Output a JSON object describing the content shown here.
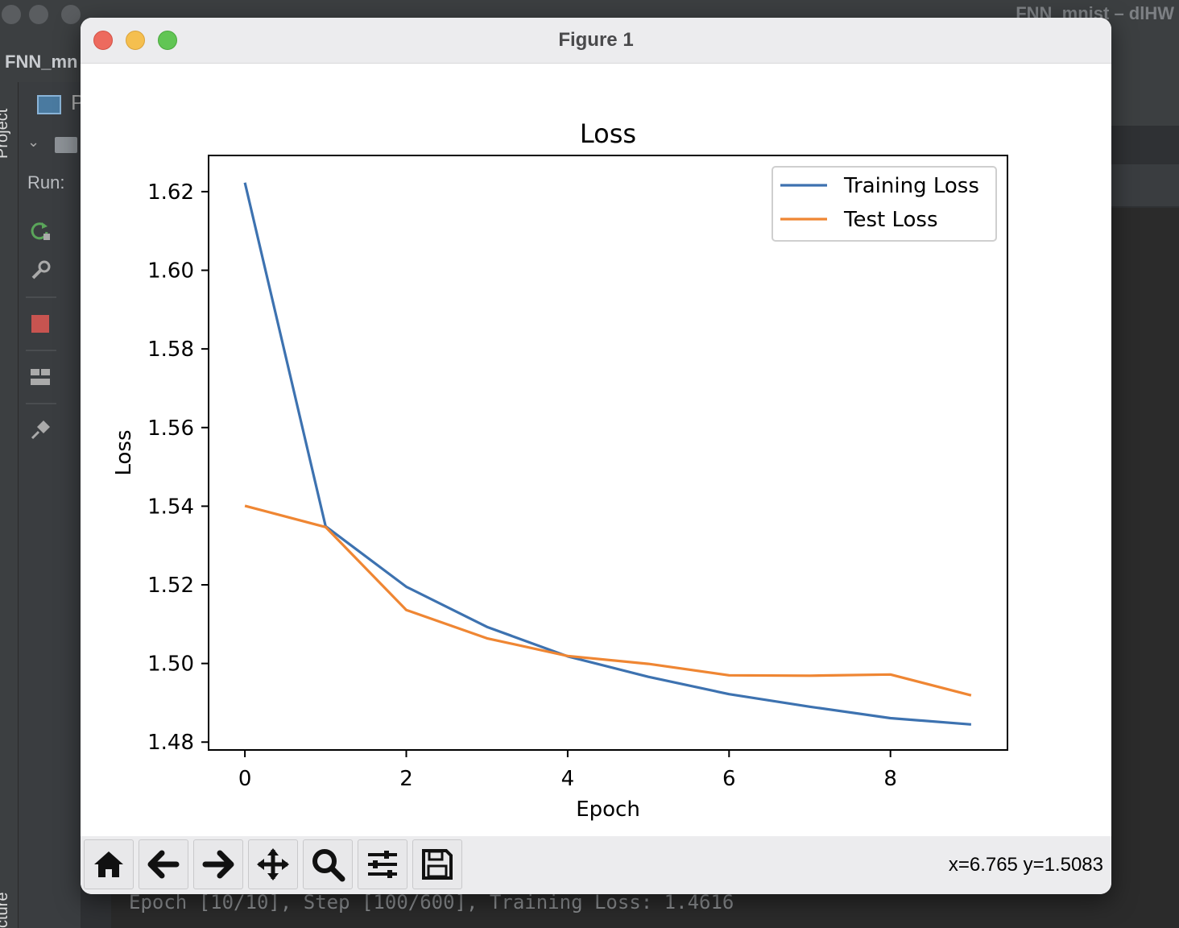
{
  "ide": {
    "window_title": "FNN_mnist – dlHW",
    "project_name": "FNN_mn",
    "project_tab_vertical": "Project",
    "structure_tab_vertical": "cture",
    "run_label": "Run:",
    "project_panel_partial": "P",
    "console_line": "Epoch [10/10], Step [100/600], Training Loss: 1.4616"
  },
  "figure_window": {
    "title": "Figure 1",
    "coords": "x=6.765 y=1.5083",
    "toolbar_buttons": [
      "home-icon",
      "back-icon",
      "forward-icon",
      "pan-icon",
      "zoom-icon",
      "configure-subplots-icon",
      "save-icon"
    ]
  },
  "chart_data": {
    "type": "line",
    "title": "Loss",
    "xlabel": "Epoch",
    "ylabel": "Loss",
    "x": [
      0,
      1,
      2,
      3,
      4,
      5,
      6,
      7,
      8,
      9
    ],
    "xlim": [
      -0.45,
      9.45
    ],
    "ylim": [
      1.478,
      1.6292
    ],
    "xticks": [
      0,
      2,
      4,
      6,
      8
    ],
    "yticks": [
      1.48,
      1.5,
      1.52,
      1.54,
      1.56,
      1.58,
      1.6,
      1.62
    ],
    "ytick_labels": [
      "1.48",
      "1.50",
      "1.52",
      "1.54",
      "1.56",
      "1.58",
      "1.60",
      "1.62"
    ],
    "legend": "top-right",
    "grid": false,
    "series": [
      {
        "name": "Training Loss",
        "color": "#3d72b0",
        "values": [
          1.6223,
          1.5349,
          1.5195,
          1.5093,
          1.5018,
          1.4966,
          1.4922,
          1.489,
          1.4861,
          1.4845
        ]
      },
      {
        "name": "Test Loss",
        "color": "#ef8633",
        "values": [
          1.5401,
          1.5347,
          1.5136,
          1.5064,
          1.5019,
          1.4999,
          1.497,
          1.4969,
          1.4972,
          1.4919
        ]
      }
    ]
  }
}
